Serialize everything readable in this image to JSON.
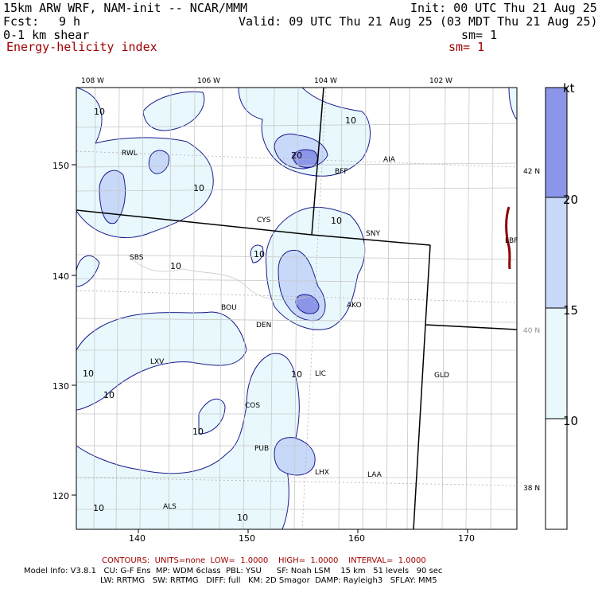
{
  "header": {
    "model": "15km ARW WRF, NAM-init -- NCAR/MMM",
    "init": "Init: 00 UTC Thu 21 Aug 25",
    "fcst_label": "Fcst:",
    "fcst_value": "9 h",
    "valid": "Valid: 09 UTC Thu 21 Aug 25 (03 MDT Thu 21 Aug 25)",
    "field1": "0-1 km shear",
    "sm1": "sm= 1",
    "field2": "Energy-helicity index",
    "sm2": "sm= 1"
  },
  "map": {
    "lon_labels": [
      "108 W",
      "106 W",
      "104 W",
      "102 W"
    ],
    "lat_labels": [
      "42 N",
      "40 N",
      "38 N"
    ],
    "y_ticks": [
      "150",
      "140",
      "130",
      "120"
    ],
    "x_ticks": [
      "140",
      "150",
      "160",
      "170"
    ],
    "stations": [
      "RWL",
      "CYS",
      "BFF",
      "AIA",
      "SNY",
      "SBS",
      "BOU",
      "AKO",
      "DEN",
      "LXV",
      "LIC",
      "GLD",
      "COS",
      "PUB",
      "LHX",
      "LAA",
      "ALS",
      "LBF"
    ],
    "contour_labels": [
      "10",
      "20",
      "10",
      "10",
      "10",
      "10",
      "10",
      "10",
      "10",
      "10",
      "10",
      "10",
      "10"
    ]
  },
  "colorbar": {
    "unit": "kt",
    "levels": [
      "20",
      "15",
      "10"
    ],
    "colors": [
      "#8c96e8",
      "#c8d8f8",
      "#e8f8fc",
      "#ffffff"
    ]
  },
  "footer": {
    "contours": "CONTOURS:  UNITS=none  LOW=  1.0000    HIGH=  1.0000    INTERVAL=  1.0000",
    "model_info_1": "Model Info: V3.8.1   CU: G-F Ens  MP: WDM 6class  PBL: YSU      SF: Noah LSM    15 km   51 levels   90 sec",
    "model_info_2": "LW: RRTMG   SW: RRTMG   DIFF: full   KM: 2D Smagor  DAMP: Rayleigh3   SFLAY: MM5"
  }
}
